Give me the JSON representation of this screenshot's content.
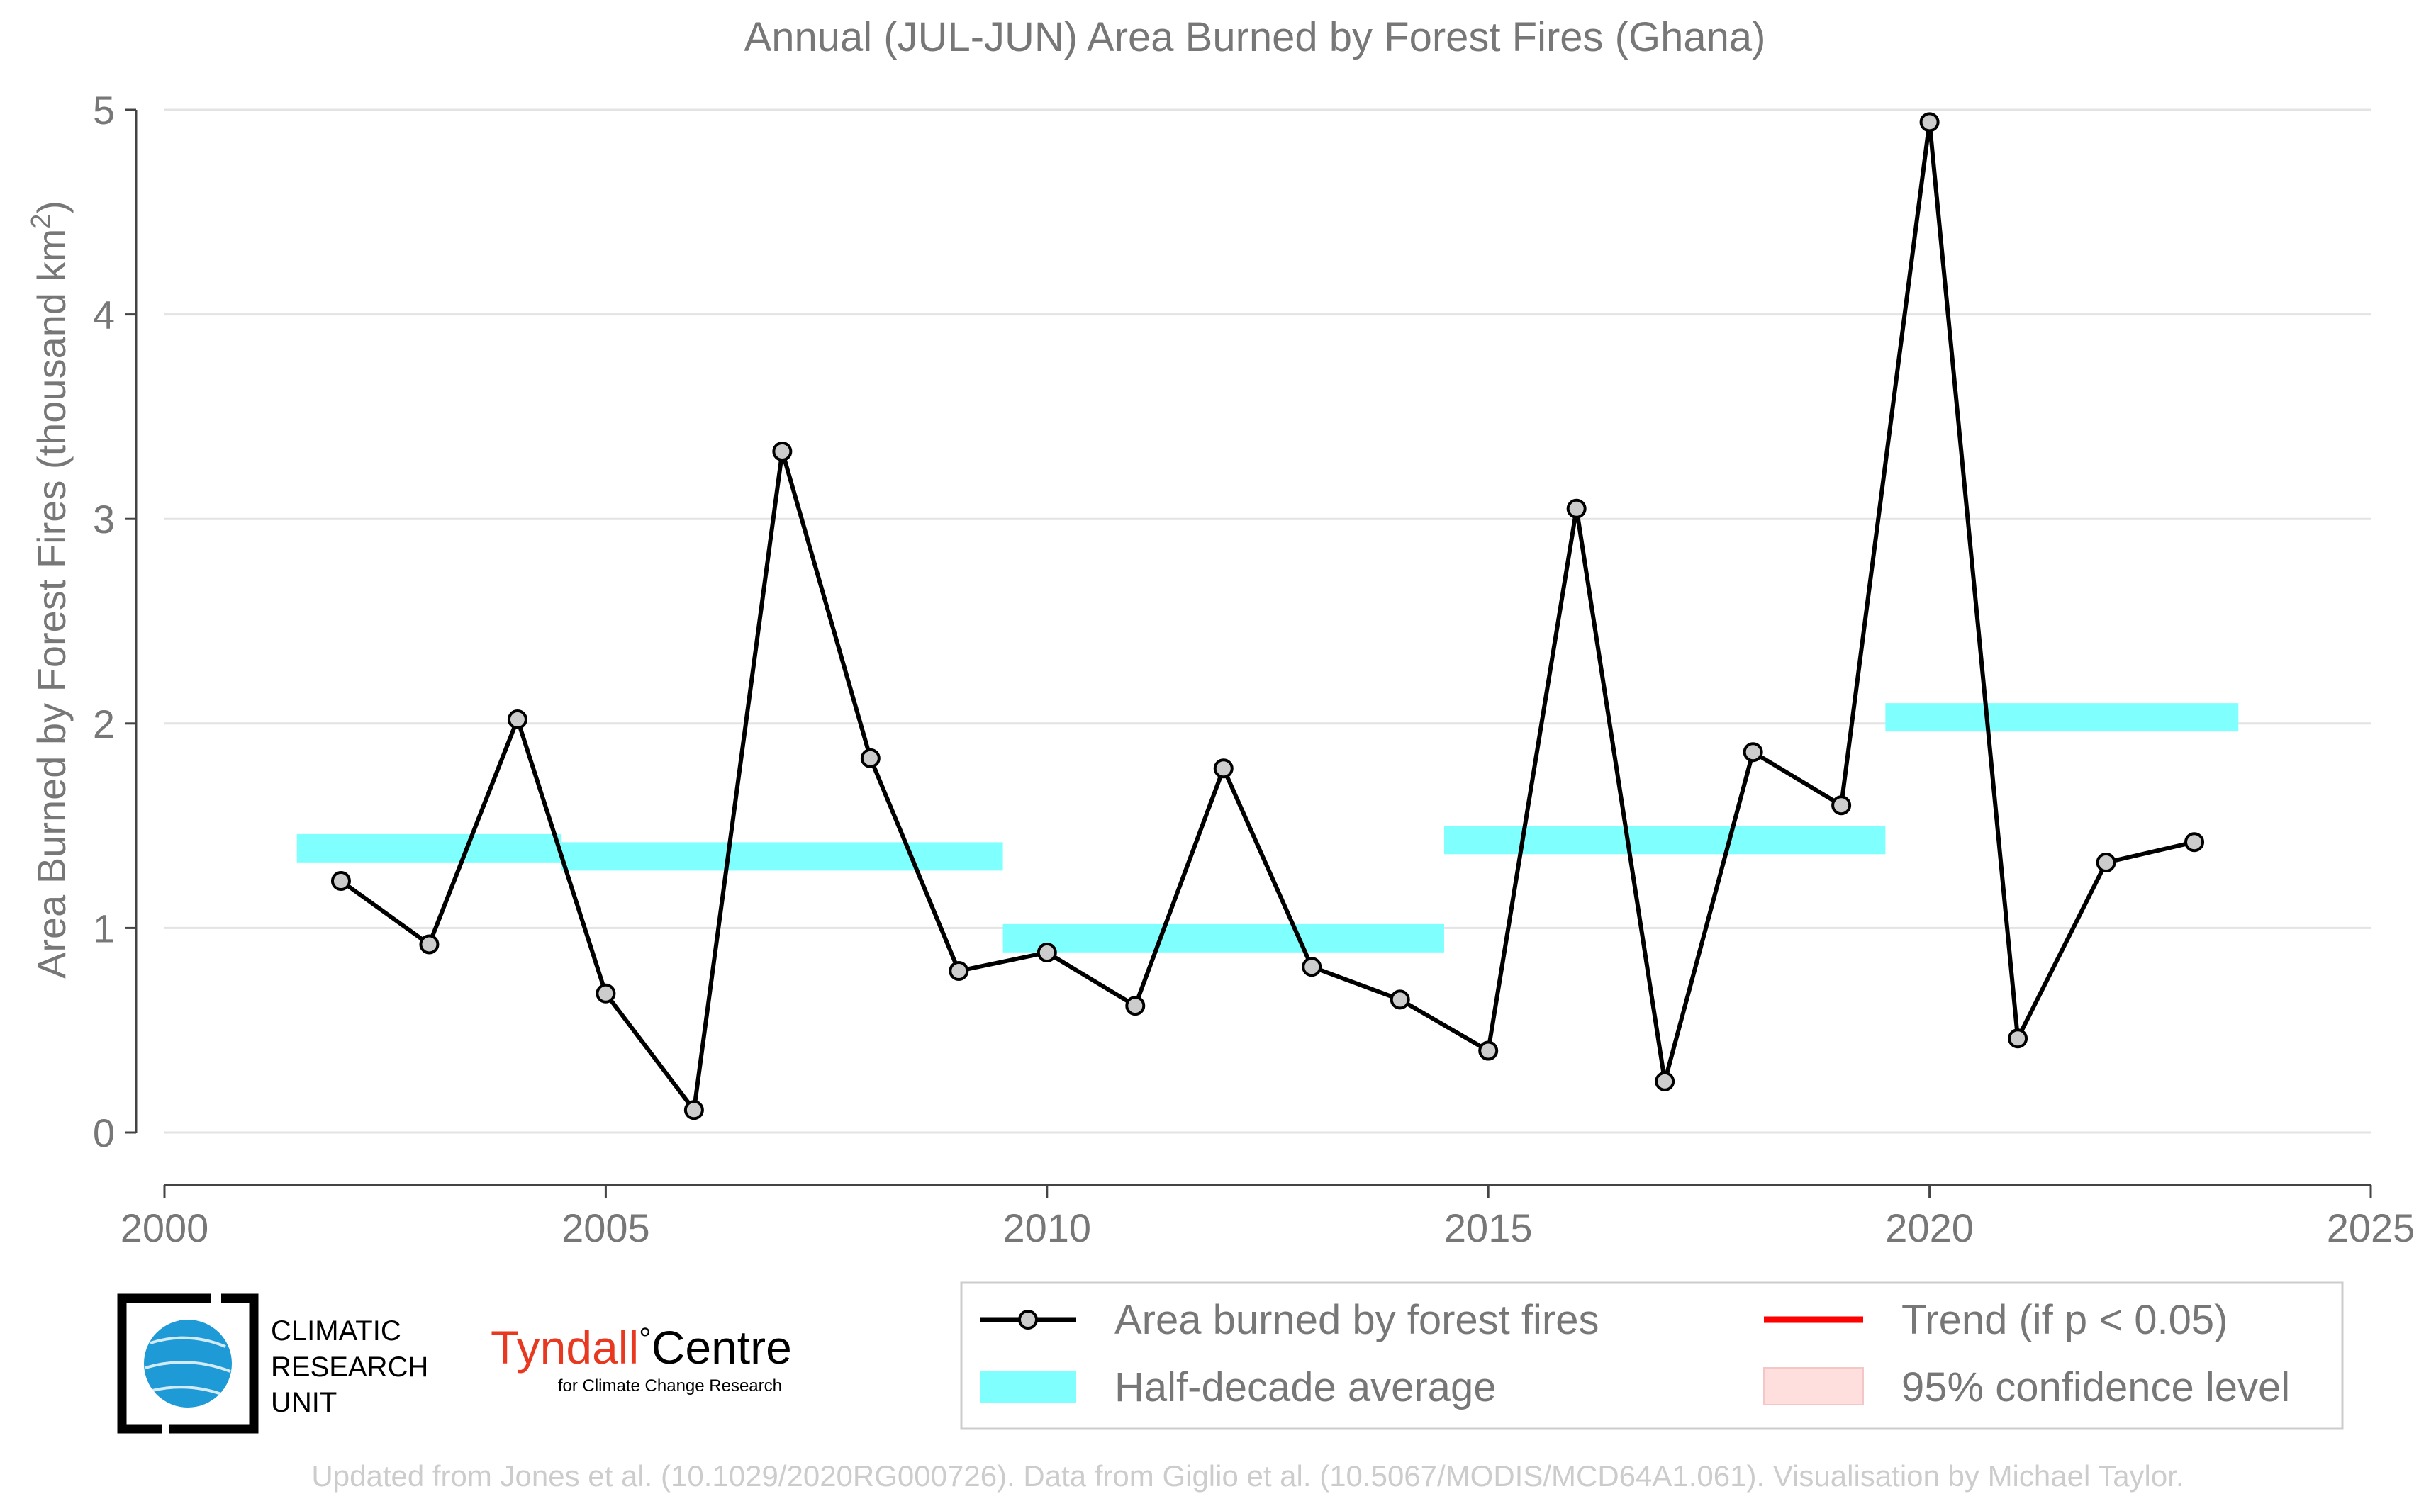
{
  "chart_data": {
    "type": "line",
    "title": "Annual (JUL-JUN) Area Burned by Forest Fires (Ghana)",
    "xlabel": "",
    "ylabel_main": "Area Burned by Forest Fires (thousand km",
    "ylabel_sup": "2",
    "ylabel_close": ")",
    "xlim": [
      2000,
      2025
    ],
    "ylim": [
      0,
      5
    ],
    "xticks": [
      "2000",
      "2005",
      "2010",
      "2015",
      "2020",
      "2025"
    ],
    "yticks": [
      "0",
      "1",
      "2",
      "3",
      "4",
      "5"
    ],
    "grid": "horizontal",
    "series": [
      {
        "name": "Area burned by forest fires",
        "color": "#000000",
        "marker_fill": "#cccccc",
        "x": [
          2002,
          2003,
          2004,
          2005,
          2006,
          2007,
          2008,
          2009,
          2010,
          2011,
          2012,
          2013,
          2014,
          2015,
          2016,
          2017,
          2018,
          2019,
          2020,
          2021,
          2022,
          2023
        ],
        "y": [
          1.23,
          0.92,
          2.02,
          0.68,
          0.11,
          3.33,
          1.83,
          0.79,
          0.88,
          0.62,
          1.78,
          0.81,
          0.65,
          0.4,
          3.05,
          0.25,
          1.86,
          1.6,
          4.94,
          0.46,
          1.32,
          1.42
        ]
      }
    ],
    "half_decade_averages": {
      "name": "Half-decade average",
      "color": "#80ffff",
      "segments": [
        {
          "x_start": 2001.5,
          "x_end": 2004.5,
          "y": 1.39
        },
        {
          "x_start": 2004.5,
          "x_end": 2009.5,
          "y": 1.35
        },
        {
          "x_start": 2009.5,
          "x_end": 2014.5,
          "y": 0.95
        },
        {
          "x_start": 2014.5,
          "x_end": 2019.5,
          "y": 1.43
        },
        {
          "x_start": 2019.5,
          "x_end": 2023.5,
          "y": 2.03
        }
      ]
    },
    "legend": {
      "placement": "bottom-right",
      "entries": [
        {
          "label": "Area burned by forest fires",
          "kind": "line-marker",
          "color": "#000000"
        },
        {
          "label": "Trend (if p < 0.05)",
          "kind": "line",
          "color": "#ff0000"
        },
        {
          "label": "Half-decade average",
          "kind": "band",
          "color": "#80ffff"
        },
        {
          "label": "95% confidence level",
          "kind": "band",
          "color": "#ffdede"
        }
      ]
    },
    "footnote": "Updated from Jones et al. (10.1029/2020RG000726). Data from Giglio et al. (10.5067/MODIS/MCD64A1.061). Visualisation by Michael Taylor."
  },
  "logos": {
    "cru": {
      "line1": "CLIMATIC",
      "line2": "RESEARCH",
      "line3": "UNIT",
      "color": "#1e9ad6"
    },
    "tyndall": {
      "name": "Tyndall",
      "degree": "°",
      "centre": "Centre",
      "subtitle": "for Climate Change Research",
      "color": "#e8381f"
    }
  }
}
